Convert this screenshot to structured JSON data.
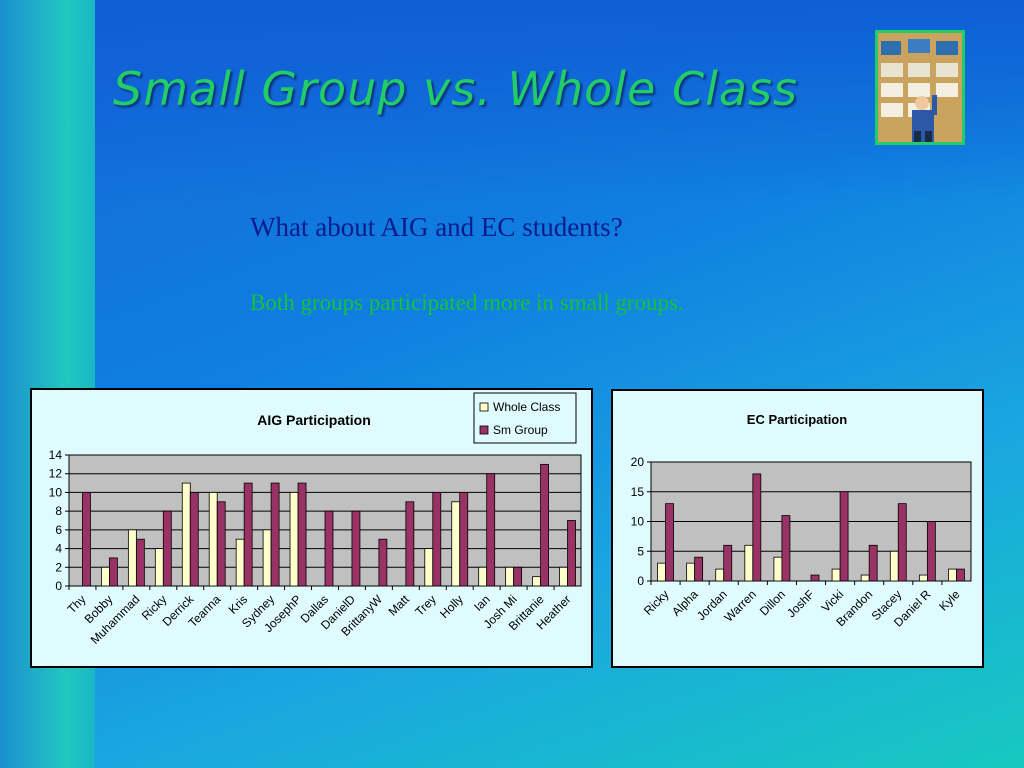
{
  "slide": {
    "title": "Small Group vs. Whole Class",
    "subtitle": "What about AIG and EC students?",
    "note": "Both groups participated more in small groups."
  },
  "colors": {
    "whole_class": "#ffffcc",
    "sm_group": "#993366",
    "plot_bg": "#c0c0c0",
    "title_text": "#22cc66",
    "subtitle_text": "#0a1c8c",
    "note_text": "#16c23a"
  },
  "chart_data": [
    {
      "type": "bar",
      "title": "AIG Participation",
      "xlabel": "",
      "ylabel": "",
      "ylim": [
        0,
        14
      ],
      "yticks": [
        0,
        2,
        4,
        6,
        8,
        10,
        12,
        14
      ],
      "grid": true,
      "legend_position": "top-right",
      "categories": [
        "Thy",
        "Bobby",
        "Muhammad",
        "Ricky",
        "Derrick",
        "Teanna",
        "Kris",
        "Sydney",
        "JosephP",
        "Dallas",
        "DanielD",
        "BrittanyW",
        "Matt",
        "Trey",
        "Holly",
        "Ian",
        "Josh Mi",
        "Brittanie",
        "Heather"
      ],
      "series": [
        {
          "name": "Whole Class",
          "values": [
            0,
            2,
            6,
            4,
            11,
            10,
            5,
            6,
            10,
            0,
            0,
            0,
            0,
            4,
            9,
            2,
            2,
            1,
            2
          ]
        },
        {
          "name": "Sm Group",
          "values": [
            10,
            3,
            5,
            8,
            10,
            9,
            11,
            11,
            11,
            8,
            8,
            5,
            9,
            10,
            10,
            12,
            2,
            13,
            7
          ]
        }
      ]
    },
    {
      "type": "bar",
      "title": "EC Participation",
      "xlabel": "",
      "ylabel": "",
      "ylim": [
        0,
        20
      ],
      "yticks": [
        0,
        5,
        10,
        15,
        20
      ],
      "grid": true,
      "legend_position": "none",
      "categories": [
        "Ricky",
        "Alpha",
        "Jordan",
        "Warren",
        "Dillon",
        "JoshF",
        "Vicki",
        "Brandon",
        "Stacey",
        "Daniel R",
        "Kyle"
      ],
      "series": [
        {
          "name": "Whole Class",
          "values": [
            3,
            3,
            2,
            6,
            4,
            0,
            2,
            1,
            5,
            1,
            2
          ]
        },
        {
          "name": "Sm Group",
          "values": [
            13,
            4,
            6,
            18,
            11,
            1,
            15,
            6,
            13,
            10,
            2
          ]
        }
      ]
    }
  ]
}
